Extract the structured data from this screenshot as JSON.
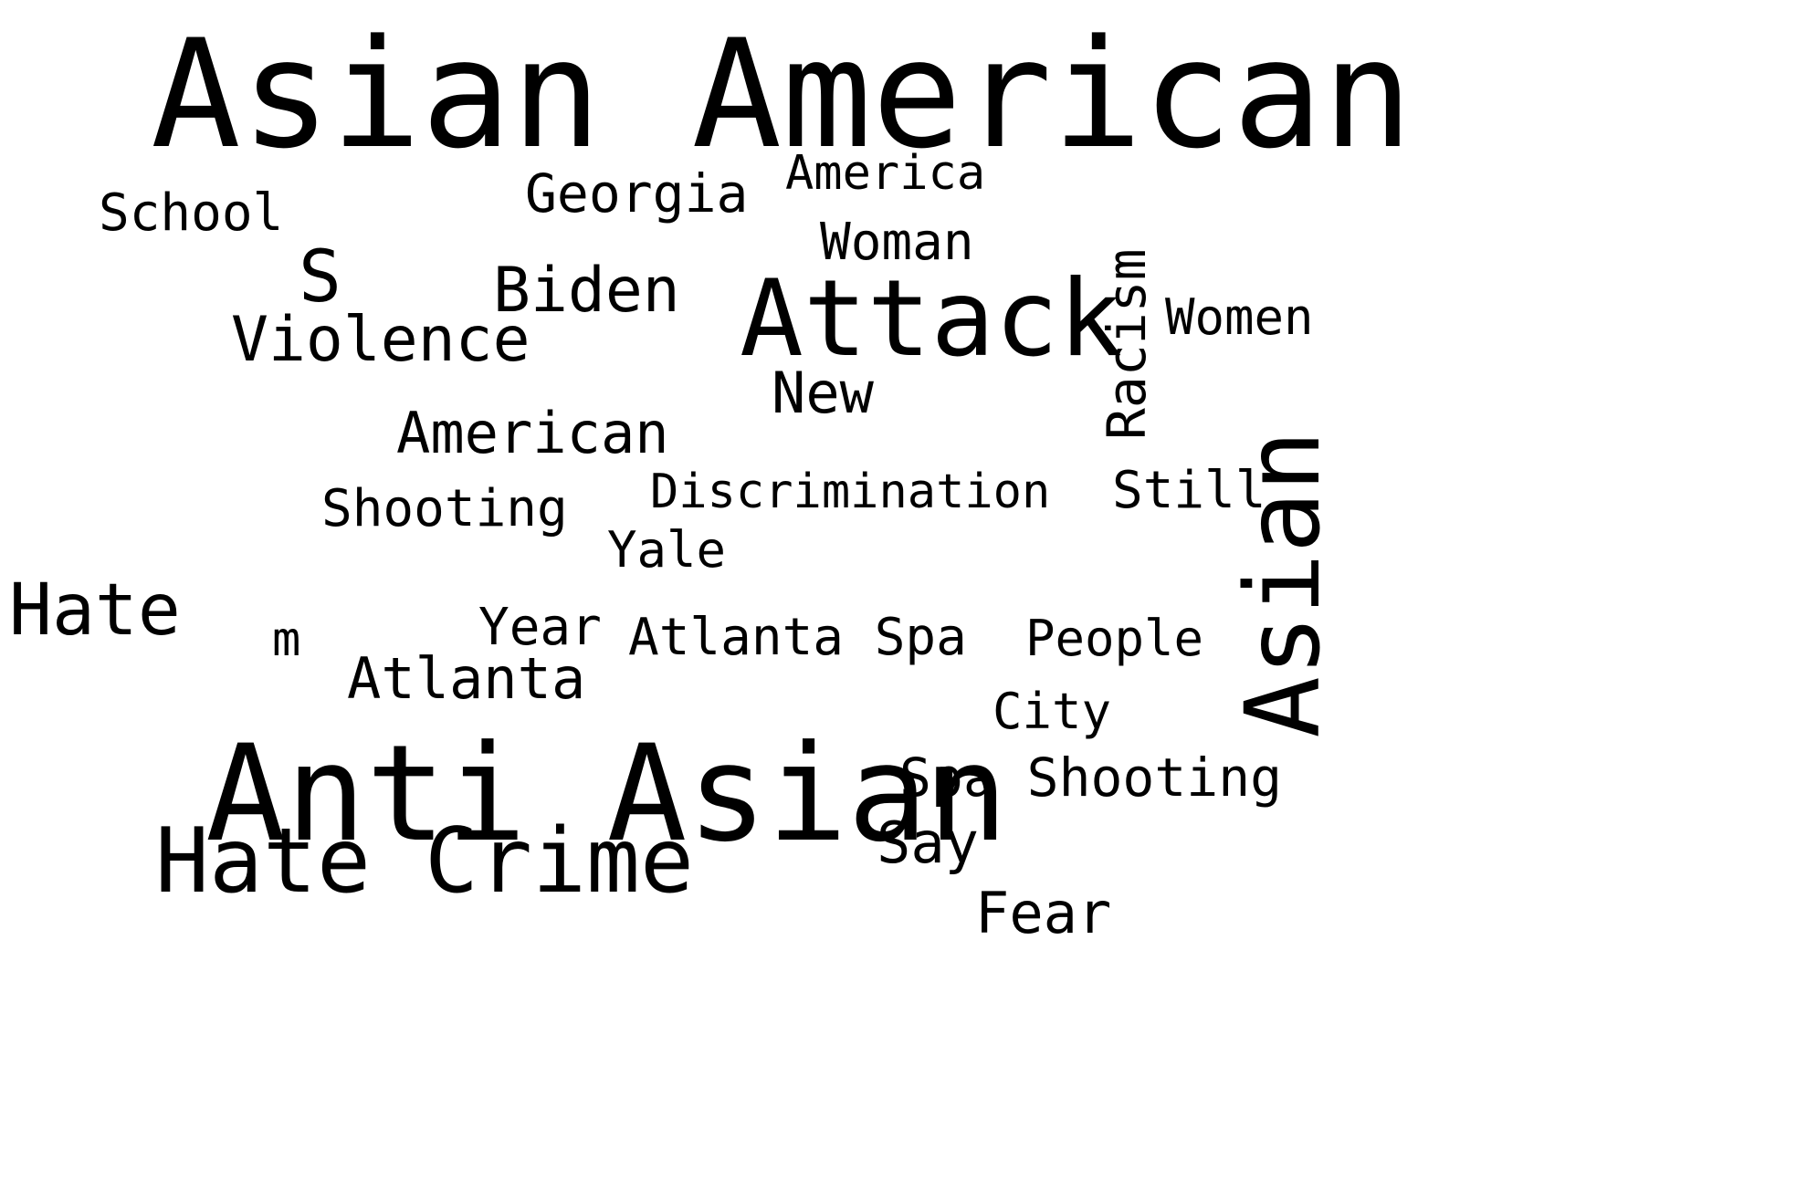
{
  "cloud": {
    "background": "#ffffff",
    "text_color": "#000000",
    "words": [
      {
        "text": "Asian American"
      },
      {
        "text": "Anti Asian"
      },
      {
        "text": "Attack"
      },
      {
        "text": "Asian"
      },
      {
        "text": "Hate Crime"
      },
      {
        "text": "Hate"
      },
      {
        "text": "S"
      },
      {
        "text": "Biden"
      },
      {
        "text": "Violence"
      },
      {
        "text": "American"
      },
      {
        "text": "Atlanta"
      },
      {
        "text": "Spa Shooting"
      },
      {
        "text": "Georgia"
      },
      {
        "text": "School"
      },
      {
        "text": "America"
      },
      {
        "text": "Woman"
      },
      {
        "text": "Women"
      },
      {
        "text": "Racism"
      },
      {
        "text": "New"
      },
      {
        "text": "Discrimination"
      },
      {
        "text": "Still"
      },
      {
        "text": "Shooting"
      },
      {
        "text": "Yale"
      },
      {
        "text": "Year"
      },
      {
        "text": "Atlanta Spa"
      },
      {
        "text": "People"
      },
      {
        "text": "City"
      },
      {
        "text": "m"
      },
      {
        "text": "Say"
      },
      {
        "text": "Fear"
      }
    ]
  }
}
